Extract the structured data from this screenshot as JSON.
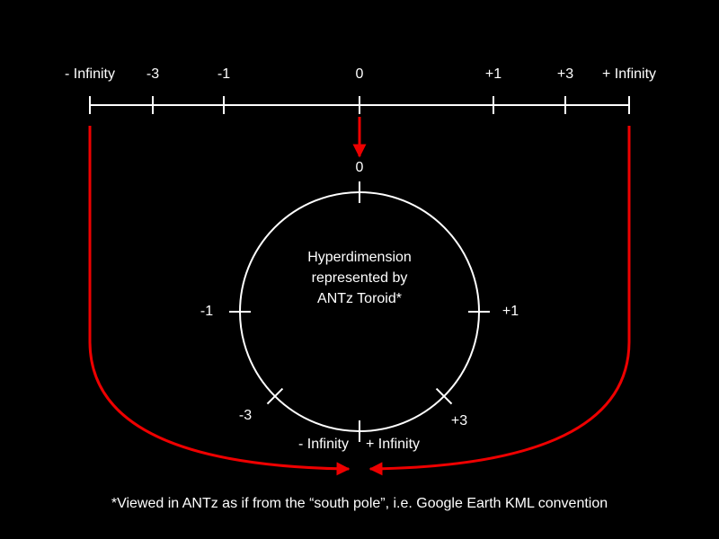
{
  "number_line": {
    "labels": [
      "- Infinity",
      "-3",
      "-1",
      "0",
      "+1",
      "+3",
      "+ Infinity"
    ]
  },
  "toroid": {
    "caption": [
      "Hyperdimension",
      "represented by",
      "ANTz Toroid*"
    ],
    "labels": {
      "top": "0",
      "left": "-1",
      "right": "+1",
      "lower_left": "-3",
      "lower_right": "+3",
      "bottom_left": "- Infinity",
      "bottom_right": "+ Infinity"
    }
  },
  "footnote": "*Viewed in ANTz as if from the “south pole”, i.e. Google Earth KML convention"
}
